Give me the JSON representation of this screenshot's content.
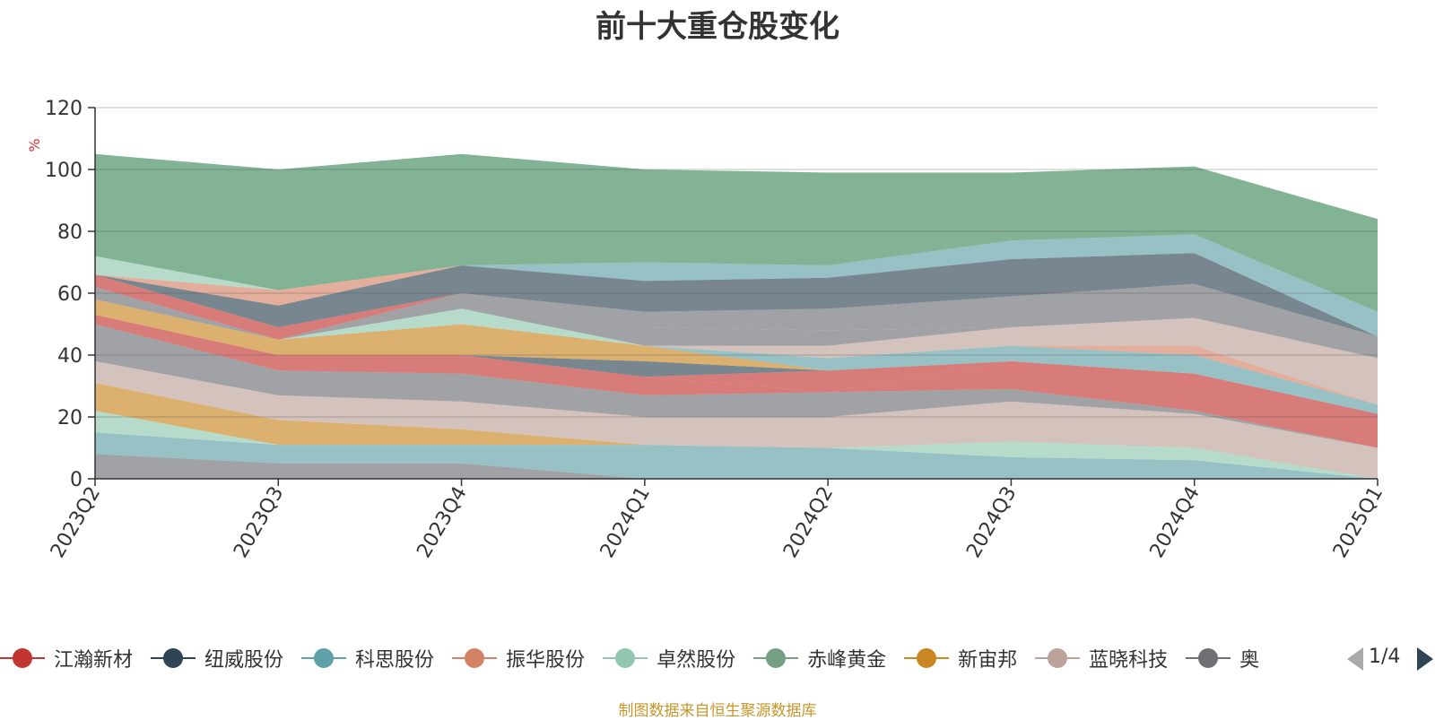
{
  "chart_data": {
    "type": "area",
    "title": "前十大重仓股变化",
    "ylabel": "%",
    "ylim": [
      0,
      120
    ],
    "yticks": [
      0,
      20,
      40,
      60,
      80,
      100,
      120
    ],
    "categories": [
      "2023Q2",
      "2023Q3",
      "2023Q4",
      "2024Q1",
      "2024Q2",
      "2024Q3",
      "2024Q4",
      "2025Q1"
    ],
    "stacked_layers": [
      {
        "color": "#6e7074",
        "values": [
          8,
          5,
          5,
          0,
          0,
          0,
          0,
          0
        ]
      },
      {
        "color": "#61a0a8",
        "values": [
          7,
          6,
          6,
          11,
          10,
          7,
          6,
          0
        ]
      },
      {
        "color": "#91c7ae",
        "values": [
          7,
          0,
          0,
          0,
          0,
          5,
          4,
          0
        ]
      },
      {
        "color": "#ca8622",
        "values": [
          9,
          8,
          5,
          0,
          0,
          0,
          0,
          0
        ]
      },
      {
        "color": "#bda29a",
        "values": [
          7,
          8,
          9,
          9,
          10,
          13,
          11,
          10
        ]
      },
      {
        "color": "#6e7074",
        "values": [
          12,
          8,
          9,
          7,
          8,
          4,
          1,
          0
        ]
      },
      {
        "color": "#c23531",
        "values": [
          3,
          5,
          6,
          6,
          0,
          9,
          12,
          11
        ]
      },
      {
        "color": "#c23531",
        "values": [
          0,
          0,
          0,
          0,
          7,
          0,
          0,
          0
        ]
      },
      {
        "color": "#2f4554",
        "values": [
          0,
          0,
          0,
          5,
          0,
          0,
          0,
          0
        ]
      },
      {
        "color": "#ca8622",
        "values": [
          5,
          5,
          10,
          5,
          0,
          0,
          0,
          0
        ]
      },
      {
        "color": "#61a0a8",
        "values": [
          0,
          0,
          0,
          0,
          4,
          5,
          6,
          3
        ]
      },
      {
        "color": "#91c7ae",
        "values": [
          0,
          0,
          5,
          0,
          0,
          0,
          0,
          0
        ]
      },
      {
        "color": "#d48265",
        "values": [
          0,
          0,
          0,
          0,
          0,
          0,
          3,
          0
        ]
      },
      {
        "color": "#bda29a",
        "values": [
          0,
          0,
          0,
          0,
          4,
          6,
          9,
          15
        ]
      },
      {
        "color": "#6e7074",
        "values": [
          4,
          0,
          0,
          6,
          5,
          0,
          0,
          0
        ]
      },
      {
        "color": "#6e7074",
        "values": [
          0,
          0,
          5,
          5,
          7,
          10,
          11,
          7
        ]
      },
      {
        "color": "#c23531",
        "values": [
          4,
          4,
          0,
          0,
          0,
          0,
          0,
          0
        ]
      },
      {
        "color": "#2f4554",
        "values": [
          0,
          7,
          9,
          10,
          10,
          12,
          10,
          0
        ]
      },
      {
        "color": "#d48265",
        "values": [
          0,
          5,
          0,
          0,
          0,
          0,
          0,
          0
        ]
      },
      {
        "color": "#61a0a8",
        "values": [
          0,
          0,
          0,
          6,
          4,
          6,
          6,
          8
        ]
      },
      {
        "color": "#91c7ae",
        "values": [
          6,
          0,
          0,
          0,
          0,
          0,
          0,
          0
        ]
      },
      {
        "color": "#3d8b5a",
        "values": [
          33,
          39,
          36,
          30,
          30,
          22,
          22,
          30
        ]
      }
    ]
  },
  "legend": {
    "items": [
      {
        "label": "江瀚新材",
        "color": "#c23531"
      },
      {
        "label": "纽威股份",
        "color": "#2f4554"
      },
      {
        "label": "科思股份",
        "color": "#61a0a8"
      },
      {
        "label": "振华股份",
        "color": "#d48265"
      },
      {
        "label": "卓然股份",
        "color": "#91c7ae"
      },
      {
        "label": "赤峰黄金",
        "color": "#749f83"
      },
      {
        "label": "新宙邦",
        "color": "#ca8622"
      },
      {
        "label": "蓝晓科技",
        "color": "#bda29a"
      },
      {
        "label": "奥",
        "color": "#6e7074"
      }
    ],
    "page": "1/4"
  },
  "source_note": "制图数据来自恒生聚源数据库"
}
